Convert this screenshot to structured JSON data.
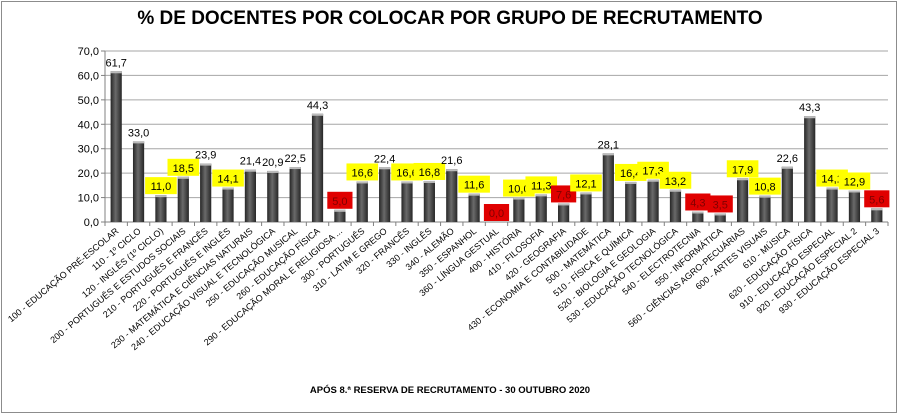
{
  "chart_data": {
    "type": "bar",
    "title": "% DE DOCENTES POR COLOCAR POR GRUPO DE RECRUTAMENTO",
    "footer": "APÓS 8.ª RESERVA  DE RECRUTAMENTO  - 30 OUTUBRO 2020",
    "xlabel": "",
    "ylabel": "",
    "ylim": [
      0,
      70
    ],
    "yticks": [
      "0,0",
      "10,0",
      "20,0",
      "30,0",
      "40,0",
      "50,0",
      "60,0",
      "70,0"
    ],
    "grid": true,
    "colors": {
      "bar": "#3f3f3f",
      "yellow": "#ffff00",
      "red": "#e00000",
      "grid": "#a6a6a6"
    },
    "categories": [
      "100 - EDUCAÇÃO PRÉ-ESCOLAR",
      "110 - 1º CICLO",
      "120 - INGLÊS (1º CICLO)",
      "200 - PORTUGUÊS  E ESTUDOS SOCIAIS",
      "210 - PORTUGUÊS  E FRANCÊS",
      "220 - PORTUGUÊS  E INGLÊS",
      "230 - MATEMÁTICA  E CIÊNCIAS NATURAIS",
      "240 - EDUCAÇÃO VISUAL E TECNOLÓGICA",
      "250 - EDUCAÇÃO MUSICAL",
      "260 - EDUCAÇÃO FÍSICA",
      "290 - EDUCAÇÃO MORAL E RELIGIOSA ...",
      "300 - PORTUGUÊS",
      "310 - LATIM E GREGO",
      "320 - FRANCÊS",
      "330 - INGLÊS",
      "340 - ALEMÃO",
      "350 - ESPANHOL",
      "360 - LÍNGUA  GESTUAL",
      "400 - HISTÓRIA",
      "410 - FILOSOFIA",
      "420 - GEOGRAFIA",
      "430 - ECONOMIA  E CONTABILIDADE",
      "500 - MATEMÁTICA",
      "510 - FÍSICA E QUÍMICA",
      "520 - BIOLOGIA E GEOLOGIA",
      "530 - EDUCAÇÃO TECNOLÓGICA",
      "540 - ELECTROTECNIA",
      "550 - INFORMÁTICA",
      "560 - CIÊNCIAS AGRO-PECUÁRIAS",
      "600 - ARTES VISUAIS",
      "610 - MÚSICA",
      "620 - EDUCAÇÃO FÍSICA",
      "910 - EDUCAÇÃO ESPECIAL",
      "920 - EDUCAÇÃO ESPECIAL 2",
      "930 - EDUCAÇÃO ESPECIAL 3"
    ],
    "values": [
      61.7,
      33.0,
      11.0,
      18.5,
      23.9,
      14.1,
      21.4,
      20.9,
      22.5,
      44.3,
      5.0,
      16.6,
      22.4,
      16.6,
      16.8,
      21.6,
      11.6,
      0.0,
      10.0,
      11.3,
      7.6,
      12.1,
      28.1,
      16.4,
      17.3,
      13.2,
      4.3,
      3.5,
      17.9,
      10.8,
      22.6,
      43.3,
      14.1,
      12.9,
      5.6
    ],
    "labels": [
      "61,7",
      "33,0",
      "11,0",
      "18,5",
      "23,9",
      "14,1",
      "21,4",
      "20,9",
      "22,5",
      "44,3",
      "5,0",
      "16,6",
      "22,4",
      "16,6",
      "16,8",
      "21,6",
      "11,6",
      "0,0",
      "10,0",
      "11,3",
      "7,6",
      "12,1",
      "28,1",
      "16,4",
      "17,3",
      "13,2",
      "4,3",
      "3,5",
      "17,9",
      "10,8",
      "22,6",
      "43,3",
      "14,1",
      "12,9",
      "5,6"
    ],
    "highlight": [
      "none",
      "none",
      "yellow",
      "yellow",
      "none",
      "yellow",
      "none",
      "none",
      "none",
      "none",
      "red",
      "yellow",
      "none",
      "yellow",
      "yellow",
      "none",
      "yellow",
      "red",
      "yellow",
      "yellow",
      "red",
      "yellow",
      "none",
      "yellow",
      "yellow",
      "yellow",
      "red",
      "red",
      "yellow",
      "yellow",
      "none",
      "none",
      "yellow",
      "yellow",
      "red"
    ]
  }
}
